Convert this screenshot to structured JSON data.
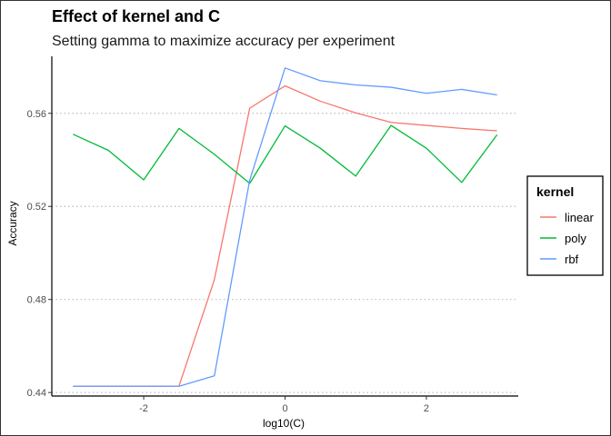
{
  "chart_data": {
    "type": "line",
    "title": "Effect of kernel and C",
    "subtitle": "Setting gamma to maximize accuracy per experiment",
    "xlabel": "log10(C)",
    "ylabel": "Accuracy",
    "xlim": [
      -3.3,
      3.3
    ],
    "ylim": [
      0.4385,
      0.5845
    ],
    "x_ticks": [
      -2,
      0,
      2
    ],
    "x_tick_labels": [
      "-2",
      "0",
      "2"
    ],
    "y_ticks": [
      0.44,
      0.48,
      0.52,
      0.56
    ],
    "y_tick_labels": [
      "0.44",
      "0.48",
      "0.52",
      "0.56"
    ],
    "grid": "horizontal dotted major gridlines",
    "legend_position": "right",
    "legend_title": "kernel",
    "x": [
      -3,
      -2.5,
      -2,
      -1.5,
      -1,
      -0.5,
      0,
      0.5,
      1,
      1.5,
      2,
      2.5,
      3
    ],
    "series": [
      {
        "name": "linear",
        "color": "#F8766D",
        "values": [
          0.4427,
          0.4427,
          0.4427,
          0.4428,
          0.4885,
          0.5622,
          0.5718,
          0.5652,
          0.5602,
          0.5561,
          0.5548,
          0.5535,
          0.5525
        ]
      },
      {
        "name": "poly",
        "color": "#00BA38",
        "values": [
          0.551,
          0.5441,
          0.5314,
          0.5535,
          0.5424,
          0.5299,
          0.5546,
          0.545,
          0.533,
          0.5548,
          0.545,
          0.5303,
          0.5508
        ]
      },
      {
        "name": "rbf",
        "color": "#619CFF",
        "values": [
          0.4427,
          0.4427,
          0.4427,
          0.4427,
          0.4472,
          0.5313,
          0.5795,
          0.574,
          0.5722,
          0.5712,
          0.5686,
          0.5703,
          0.5679
        ]
      }
    ]
  }
}
